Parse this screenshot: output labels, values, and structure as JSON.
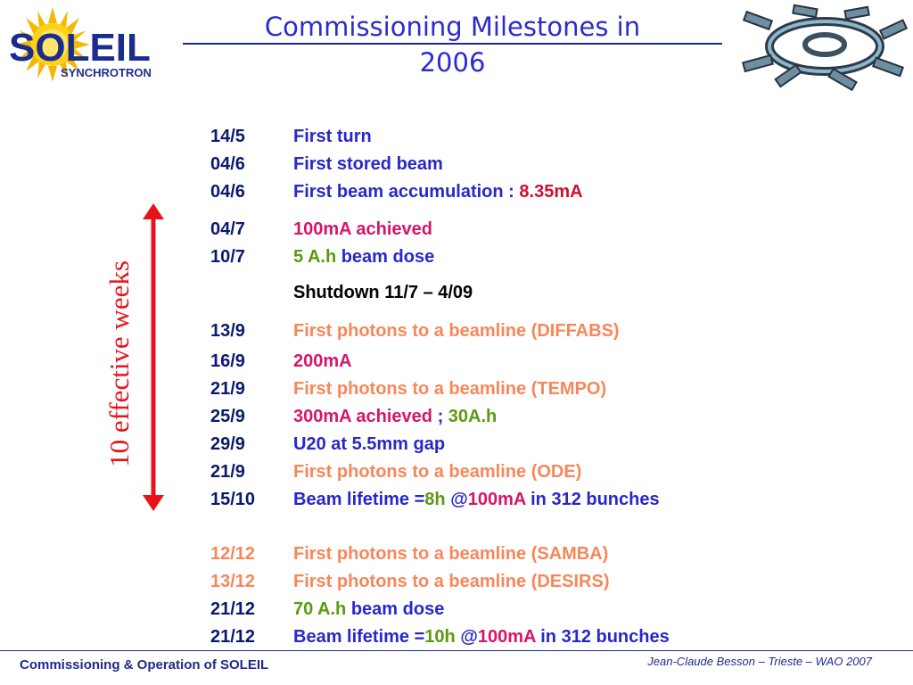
{
  "header": {
    "title_line1": "Commissioning Milestones in",
    "title_line2": "2006",
    "logo_text": "SOLEIL",
    "logo_sub": "SYNCHROTRON"
  },
  "sidebar": {
    "label": "10 effective weeks"
  },
  "milestones": [
    {
      "date": "14/5",
      "parts": [
        "First turn"
      ]
    },
    {
      "date": "04/6",
      "parts": [
        "First stored beam"
      ]
    },
    {
      "date": "04/6",
      "parts": [
        "First beam accumulation : ",
        "8.35mA"
      ]
    },
    {
      "date": "04/7",
      "parts": [
        "100mA achieved"
      ]
    },
    {
      "date": "10/7",
      "parts": [
        "5 A.h",
        " beam dose"
      ]
    },
    {
      "date": "",
      "parts": [
        "Shutdown 11/7 – 4/09"
      ]
    },
    {
      "date": "13/9",
      "parts": [
        "First photons to a beamline (DIFFABS)"
      ]
    },
    {
      "date": "16/9",
      "parts": [
        "200mA"
      ]
    },
    {
      "date": "21/9",
      "parts": [
        "First photons to a beamline (TEMPO)"
      ]
    },
    {
      "date": "25/9",
      "parts": [
        "300mA achieved ",
        ";",
        " 30A.h"
      ]
    },
    {
      "date": "29/9",
      "parts": [
        "U20 at 5.5mm gap"
      ]
    },
    {
      "date": "21/9",
      "parts": [
        "First photons to a beamline (ODE)"
      ]
    },
    {
      "date": "15/10",
      "parts": [
        "Beam lifetime =",
        "8h",
        " @",
        "100mA",
        " in 312 bunches"
      ]
    },
    {
      "date": "12/12",
      "parts": [
        "First photons to a beamline (SAMBA)"
      ]
    },
    {
      "date": "13/12",
      "parts": [
        "First photons to a beamline (DESIRS)"
      ]
    },
    {
      "date": "21/12",
      "parts": [
        "70 A.h",
        " beam dose"
      ]
    },
    {
      "date": "21/12",
      "parts": [
        "Beam lifetime =",
        "10h",
        " @",
        "100mA",
        " in 312 bunches"
      ]
    }
  ],
  "footer": {
    "left": "Commissioning & Operation of SOLEIL",
    "right": "Jean-Claude Besson – Trieste – WAO 2007"
  },
  "colors": {
    "title_blue": "#2b2bd0",
    "text_blue": "#2828c8",
    "magenta": "#d4166a",
    "green": "#5a9a10",
    "salmon": "#f7875a",
    "arrow_red": "#e8121a"
  }
}
